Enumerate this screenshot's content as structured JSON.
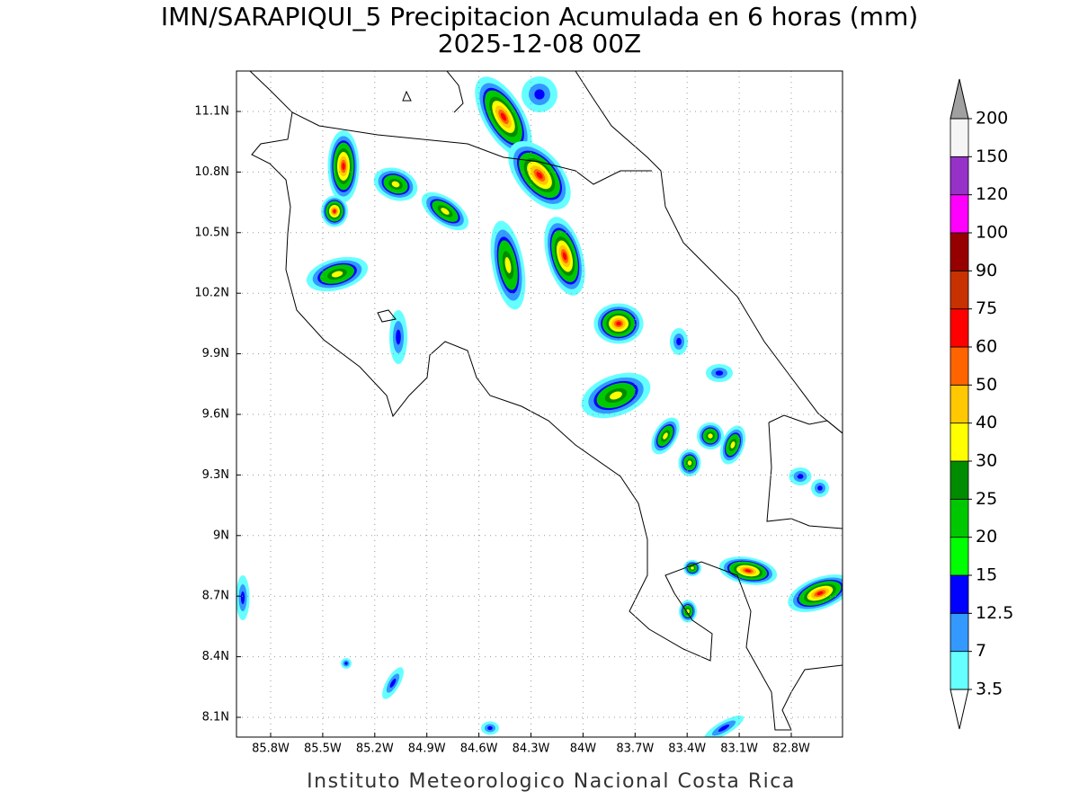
{
  "title": "IMN/SARAPIQUI_5 Precipitacion Acumulada en 6 horas (mm)",
  "subtitle": "2025-12-08 00Z",
  "map": {
    "lat_ticks": [
      "11.1N",
      "10.8N",
      "10.5N",
      "10.2N",
      "9.9N",
      "9.6N",
      "9.3N",
      "9N",
      "8.7N",
      "8.4N",
      "8.1N"
    ],
    "lon_ticks": [
      "85.8W",
      "85.5W",
      "85.2W",
      "84.9W",
      "84.6W",
      "84.3W",
      "84W",
      "83.7W",
      "83.4W",
      "83.1W",
      "82.8W"
    ]
  },
  "colorbar": {
    "levels": [
      3.5,
      7,
      12.5,
      15,
      20,
      25,
      30,
      40,
      50,
      60,
      75,
      90,
      100,
      120,
      150,
      200
    ],
    "colors": [
      "#66ffff",
      "#3399ff",
      "#0000ff",
      "#00ff00",
      "#00c800",
      "#008c00",
      "#ffff00",
      "#ffc800",
      "#ff6400",
      "#ff0000",
      "#c83200",
      "#960000",
      "#ff00ff",
      "#9632c8",
      "#f5f5f5"
    ],
    "under_color": "#ffffff",
    "over_color": "#a0a0a0"
  },
  "footer": "Instituto Meteorologico Nacional Costa Rica"
}
